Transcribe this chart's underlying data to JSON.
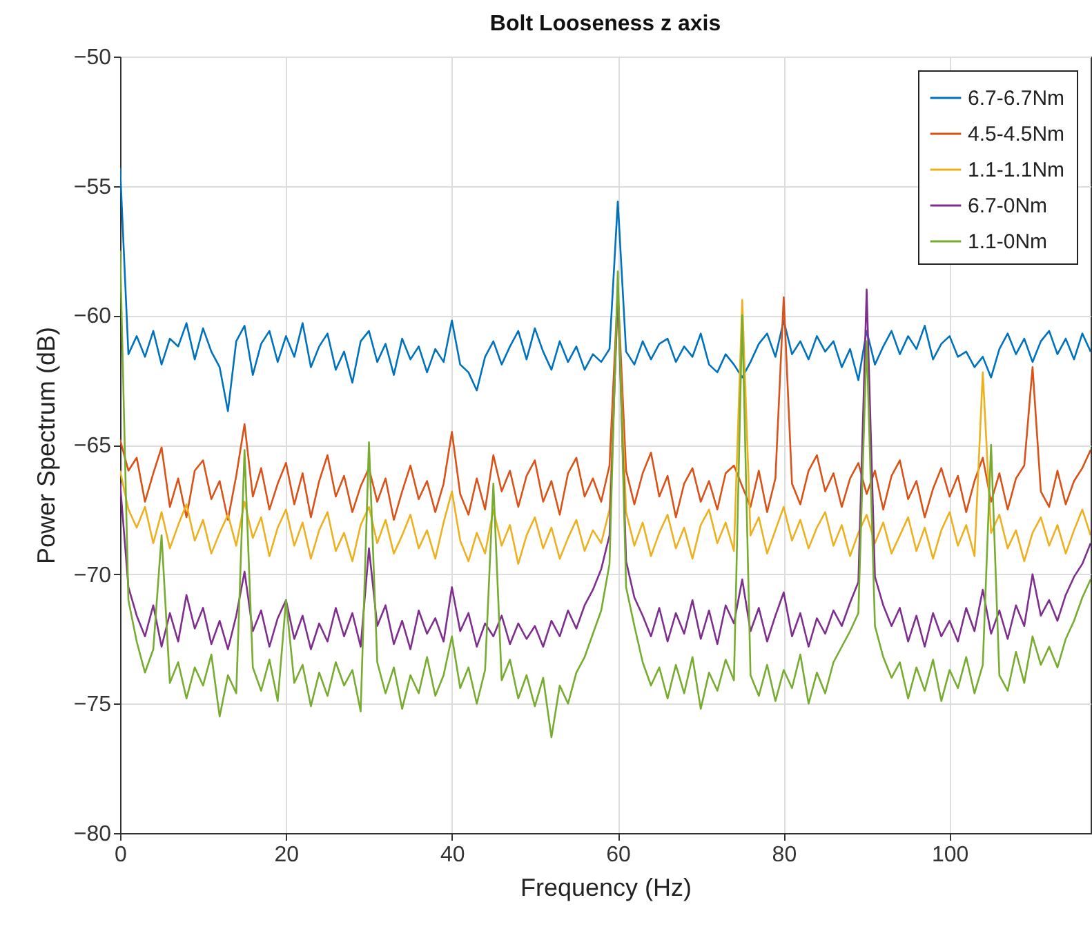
{
  "chart_data": {
    "type": "line",
    "title": "Bolt Looseness z axis",
    "xlabel": "Frequency (Hz)",
    "ylabel": "Power Spectrum (dB)",
    "x": [
      0,
      1,
      2,
      3,
      4,
      5,
      6,
      7,
      8,
      9,
      10,
      11,
      12,
      13,
      14,
      15,
      16,
      17,
      18,
      19,
      20,
      21,
      22,
      23,
      24,
      25,
      26,
      27,
      28,
      29,
      30,
      31,
      32,
      33,
      34,
      35,
      36,
      37,
      38,
      39,
      40,
      41,
      42,
      43,
      44,
      45,
      46,
      47,
      48,
      49,
      50,
      51,
      52,
      53,
      54,
      55,
      56,
      57,
      58,
      59,
      60,
      61,
      62,
      63,
      64,
      65,
      66,
      67,
      68,
      69,
      70,
      71,
      72,
      73,
      74,
      75,
      76,
      77,
      78,
      79,
      80,
      81,
      82,
      83,
      84,
      85,
      86,
      87,
      88,
      89,
      90,
      91,
      92,
      93,
      94,
      95,
      96,
      97,
      98,
      99,
      100,
      101,
      102,
      103,
      104,
      105,
      106,
      107,
      108,
      109,
      110,
      111,
      112,
      113,
      114,
      115,
      116,
      117
    ],
    "xlim": [
      0,
      117
    ],
    "xticks": [
      0,
      20,
      40,
      60,
      80,
      100
    ],
    "ylim": [
      -80,
      -50
    ],
    "yticks": [
      -80,
      -75,
      -70,
      -65,
      -60,
      -55,
      -50
    ],
    "grid": true,
    "legend": "top right",
    "series": [
      {
        "name": "6.7-6.7Nm",
        "color": "#0072bd",
        "values": [
          -54.3,
          -61.5,
          -60.8,
          -61.6,
          -60.6,
          -61.9,
          -60.9,
          -61.2,
          -60.3,
          -61.7,
          -60.5,
          -61.4,
          -62.0,
          -63.7,
          -61.0,
          -60.4,
          -62.3,
          -61.1,
          -60.6,
          -61.8,
          -60.8,
          -61.6,
          -60.3,
          -62.0,
          -61.2,
          -60.7,
          -62.1,
          -61.4,
          -62.6,
          -61.0,
          -60.6,
          -61.8,
          -61.1,
          -62.3,
          -60.9,
          -61.7,
          -61.2,
          -62.2,
          -61.3,
          -61.8,
          -60.2,
          -61.9,
          -62.2,
          -62.9,
          -61.6,
          -61.0,
          -61.9,
          -61.2,
          -60.6,
          -61.7,
          -60.5,
          -61.4,
          -62.1,
          -61.0,
          -61.8,
          -61.2,
          -62.1,
          -61.5,
          -61.8,
          -61.3,
          -55.6,
          -61.4,
          -61.9,
          -61.0,
          -61.7,
          -61.1,
          -60.9,
          -61.8,
          -61.2,
          -61.6,
          -60.7,
          -61.9,
          -62.2,
          -61.5,
          -61.9,
          -62.4,
          -61.8,
          -61.1,
          -60.7,
          -61.6,
          -60.2,
          -61.5,
          -61.0,
          -61.7,
          -60.8,
          -61.4,
          -61.0,
          -62.0,
          -61.3,
          -62.5,
          -60.6,
          -61.9,
          -61.2,
          -60.6,
          -61.5,
          -60.8,
          -61.3,
          -60.4,
          -61.7,
          -61.1,
          -60.8,
          -61.6,
          -61.4,
          -62.0,
          -61.6,
          -62.4,
          -61.3,
          -60.7,
          -61.5,
          -60.9,
          -61.8,
          -61.0,
          -60.6,
          -61.5,
          -60.9,
          -61.7,
          -60.7,
          -61.4
        ]
      },
      {
        "name": "4.5-4.5Nm",
        "color": "#d95319",
        "values": [
          -64.8,
          -66.0,
          -65.5,
          -67.2,
          -66.1,
          -65.1,
          -67.4,
          -66.3,
          -67.8,
          -66.0,
          -65.6,
          -67.1,
          -66.4,
          -67.9,
          -66.2,
          -64.2,
          -67.0,
          -65.9,
          -67.5,
          -66.5,
          -65.7,
          -67.3,
          -66.1,
          -67.8,
          -66.4,
          -65.4,
          -67.0,
          -66.2,
          -67.6,
          -66.6,
          -65.9,
          -67.2,
          -66.3,
          -67.9,
          -66.8,
          -65.8,
          -67.1,
          -66.4,
          -67.6,
          -66.5,
          -64.5,
          -66.9,
          -67.7,
          -66.3,
          -67.5,
          -65.4,
          -66.8,
          -66.0,
          -67.4,
          -66.2,
          -65.6,
          -67.2,
          -66.4,
          -67.7,
          -66.1,
          -65.5,
          -67.0,
          -66.3,
          -67.2,
          -65.8,
          -59.0,
          -66.0,
          -67.3,
          -66.1,
          -65.3,
          -67.0,
          -66.2,
          -67.8,
          -66.5,
          -65.9,
          -67.2,
          -66.4,
          -67.5,
          -66.1,
          -65.8,
          -66.6,
          -67.4,
          -66.0,
          -67.6,
          -66.3,
          -59.3,
          -66.5,
          -67.3,
          -66.0,
          -65.4,
          -66.8,
          -66.1,
          -67.4,
          -66.3,
          -65.7,
          -66.9,
          -66.0,
          -67.5,
          -66.2,
          -65.6,
          -67.1,
          -66.4,
          -67.8,
          -66.7,
          -65.9,
          -67.0,
          -66.2,
          -67.6,
          -66.4,
          -65.5,
          -67.2,
          -66.1,
          -67.5,
          -66.3,
          -65.8,
          -62.0,
          -66.8,
          -67.4,
          -66.0,
          -67.3,
          -66.4,
          -65.9,
          -65.2
        ]
      },
      {
        "name": "1.1-1.1Nm",
        "color": "#edb120",
        "values": [
          -66.0,
          -67.5,
          -68.2,
          -67.4,
          -68.8,
          -67.6,
          -69.0,
          -68.1,
          -67.3,
          -68.7,
          -67.9,
          -69.2,
          -68.4,
          -67.7,
          -68.9,
          -67.2,
          -68.6,
          -67.8,
          -69.3,
          -68.2,
          -67.5,
          -68.9,
          -68.0,
          -69.4,
          -68.3,
          -67.6,
          -69.1,
          -68.4,
          -69.5,
          -68.1,
          -67.4,
          -68.8,
          -67.9,
          -69.2,
          -68.5,
          -67.7,
          -69.0,
          -68.3,
          -69.4,
          -68.0,
          -66.8,
          -68.7,
          -69.5,
          -68.4,
          -69.2,
          -67.5,
          -68.9,
          -68.1,
          -69.6,
          -68.5,
          -67.8,
          -69.0,
          -68.2,
          -69.4,
          -68.6,
          -67.9,
          -69.1,
          -68.3,
          -68.8,
          -67.5,
          -59.5,
          -67.6,
          -68.9,
          -68.0,
          -69.3,
          -68.4,
          -67.7,
          -69.0,
          -68.2,
          -69.4,
          -68.1,
          -67.5,
          -68.8,
          -68.0,
          -69.1,
          -59.4,
          -68.5,
          -67.8,
          -69.2,
          -68.3,
          -67.4,
          -68.7,
          -67.9,
          -69.0,
          -68.2,
          -67.6,
          -68.9,
          -68.1,
          -69.3,
          -68.4,
          -67.7,
          -68.8,
          -68.0,
          -69.2,
          -68.5,
          -67.8,
          -69.1,
          -68.2,
          -69.4,
          -68.3,
          -67.6,
          -68.9,
          -68.1,
          -69.3,
          -62.2,
          -68.4,
          -67.7,
          -69.0,
          -68.3,
          -69.5,
          -68.4,
          -67.8,
          -68.9,
          -68.1,
          -69.2,
          -68.3,
          -67.5,
          -68.5
        ]
      },
      {
        "name": "6.7-0Nm",
        "color": "#7e2f8e",
        "values": [
          -66.5,
          -70.5,
          -71.6,
          -72.4,
          -71.2,
          -72.8,
          -71.5,
          -72.6,
          -70.8,
          -72.1,
          -71.3,
          -72.7,
          -71.8,
          -72.9,
          -71.6,
          -69.9,
          -72.2,
          -71.4,
          -72.8,
          -71.7,
          -71.0,
          -72.5,
          -71.6,
          -72.9,
          -71.9,
          -72.6,
          -71.3,
          -72.4,
          -71.5,
          -72.8,
          -69.0,
          -72.0,
          -71.2,
          -72.7,
          -71.8,
          -72.9,
          -71.4,
          -72.3,
          -71.7,
          -72.6,
          -70.5,
          -72.2,
          -71.5,
          -72.8,
          -71.9,
          -72.4,
          -71.6,
          -72.7,
          -71.9,
          -72.5,
          -72.0,
          -72.8,
          -71.8,
          -72.4,
          -71.4,
          -72.1,
          -71.2,
          -70.6,
          -69.8,
          -68.5,
          -59.0,
          -69.5,
          -70.9,
          -71.6,
          -72.4,
          -71.3,
          -72.6,
          -71.5,
          -72.3,
          -71.0,
          -72.5,
          -71.4,
          -72.7,
          -71.2,
          -71.9,
          -70.2,
          -72.2,
          -71.3,
          -72.6,
          -71.6,
          -70.7,
          -72.4,
          -71.5,
          -72.8,
          -71.7,
          -72.3,
          -71.4,
          -72.0,
          -71.1,
          -70.3,
          -59.0,
          -70.1,
          -71.2,
          -72.0,
          -71.3,
          -72.6,
          -71.6,
          -72.8,
          -71.5,
          -72.4,
          -71.8,
          -72.6,
          -71.3,
          -72.2,
          -70.6,
          -72.3,
          -71.4,
          -72.5,
          -71.2,
          -72.0,
          -70.0,
          -71.6,
          -71.0,
          -71.8,
          -70.8,
          -70.1,
          -69.6,
          -68.8
        ]
      },
      {
        "name": "1.1-0Nm",
        "color": "#77ac30",
        "values": [
          -57.5,
          -71.0,
          -72.6,
          -73.8,
          -72.9,
          -68.5,
          -74.2,
          -73.4,
          -74.8,
          -73.6,
          -74.3,
          -73.1,
          -75.5,
          -73.9,
          -74.6,
          -65.2,
          -73.6,
          -74.5,
          -73.3,
          -74.9,
          -71.0,
          -74.2,
          -73.5,
          -75.1,
          -73.8,
          -74.7,
          -73.4,
          -74.3,
          -73.7,
          -75.3,
          -64.9,
          -73.4,
          -74.6,
          -73.6,
          -75.2,
          -73.9,
          -74.6,
          -73.2,
          -74.7,
          -73.9,
          -72.4,
          -74.4,
          -73.6,
          -75.0,
          -73.7,
          -66.5,
          -74.1,
          -73.3,
          -74.8,
          -73.9,
          -75.1,
          -74.0,
          -76.3,
          -74.3,
          -75.0,
          -73.8,
          -73.2,
          -72.3,
          -71.4,
          -69.6,
          -58.3,
          -70.5,
          -72.0,
          -73.4,
          -74.3,
          -73.6,
          -74.8,
          -73.5,
          -74.6,
          -73.2,
          -75.2,
          -73.8,
          -74.5,
          -73.3,
          -74.1,
          -60.0,
          -73.9,
          -74.7,
          -73.5,
          -74.9,
          -73.7,
          -74.4,
          -73.1,
          -75.0,
          -73.8,
          -74.6,
          -73.4,
          -72.8,
          -72.2,
          -71.5,
          -61.0,
          -72.0,
          -73.2,
          -74.0,
          -73.4,
          -74.8,
          -73.6,
          -74.5,
          -73.3,
          -74.9,
          -73.7,
          -74.4,
          -73.2,
          -74.6,
          -73.5,
          -65.0,
          -73.9,
          -74.5,
          -73.0,
          -74.2,
          -72.4,
          -73.5,
          -72.8,
          -73.6,
          -72.5,
          -71.8,
          -70.9,
          -70.2
        ]
      }
    ]
  }
}
